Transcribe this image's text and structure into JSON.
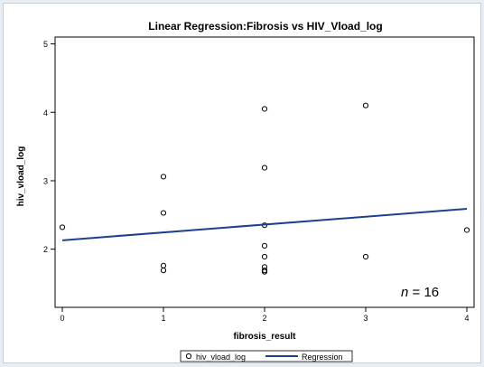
{
  "chart_data": {
    "type": "scatter",
    "title": "Linear Regression:Fibrosis vs HIV_Vload_log",
    "xlabel": "fibrosis_result",
    "ylabel": "hiv_vload_log",
    "xlim": [
      0,
      4
    ],
    "ylim": [
      1.15,
      5.1
    ],
    "xticks": [
      "0",
      "1",
      "2",
      "3",
      "4"
    ],
    "yticks": [
      "2",
      "3",
      "4",
      "5"
    ],
    "grid": false,
    "legend_position": "bottom-center",
    "annotation": {
      "prefix": "n",
      "text": " = 16"
    },
    "series": [
      {
        "name": "hiv_vload_log",
        "marker": "open-circle",
        "points": [
          [
            0,
            2.32
          ],
          [
            1,
            3.06
          ],
          [
            1,
            2.53
          ],
          [
            1,
            1.76
          ],
          [
            1,
            1.69
          ],
          [
            2,
            4.05
          ],
          [
            2,
            3.19
          ],
          [
            2,
            2.35
          ],
          [
            2,
            2.05
          ],
          [
            2,
            1.89
          ],
          [
            2,
            1.74
          ],
          [
            2,
            1.69
          ],
          [
            2,
            1.67
          ],
          [
            3,
            4.1
          ],
          [
            3,
            1.89
          ],
          [
            4,
            2.28
          ]
        ]
      },
      {
        "name": "Regression",
        "type": "line",
        "x": [
          0,
          4
        ],
        "y": [
          2.13,
          2.59
        ]
      }
    ],
    "colors": {
      "marker": "#000000",
      "regression": "#1f3f8f",
      "frame": "#000000"
    }
  }
}
